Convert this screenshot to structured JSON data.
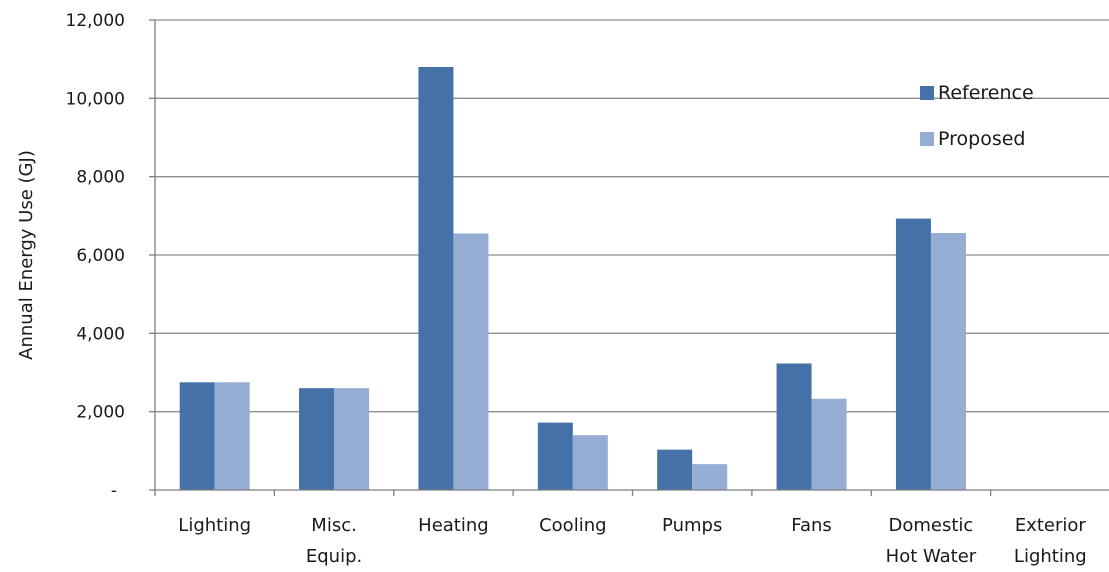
{
  "chart_data": {
    "type": "bar",
    "ylabel": "Annual Energy Use (GJ)",
    "xlabel": "",
    "title": "",
    "ylim": [
      0,
      12000
    ],
    "yticks": [
      {
        "value": 0,
        "label": "-"
      },
      {
        "value": 2000,
        "label": "2,000"
      },
      {
        "value": 4000,
        "label": "4,000"
      },
      {
        "value": 6000,
        "label": "6,000"
      },
      {
        "value": 8000,
        "label": "8,000"
      },
      {
        "value": 10000,
        "label": "10,000"
      },
      {
        "value": 12000,
        "label": "12,000"
      }
    ],
    "categories": [
      [
        "Lighting"
      ],
      [
        "Misc.",
        "Equip."
      ],
      [
        "Heating"
      ],
      [
        "Cooling"
      ],
      [
        "Pumps"
      ],
      [
        "Fans"
      ],
      [
        "Domestic",
        "Hot Water"
      ],
      [
        "Exterior",
        "Lighting"
      ]
    ],
    "series": [
      {
        "name": "Reference",
        "color": "#4472a8",
        "values": [
          2750,
          2600,
          10800,
          1720,
          1030,
          3230,
          6930,
          0
        ]
      },
      {
        "name": "Proposed",
        "color": "#95acd3",
        "values": [
          2750,
          2600,
          6550,
          1400,
          660,
          2330,
          6560,
          0
        ]
      }
    ],
    "grid": true,
    "legend_position": "top-right"
  }
}
